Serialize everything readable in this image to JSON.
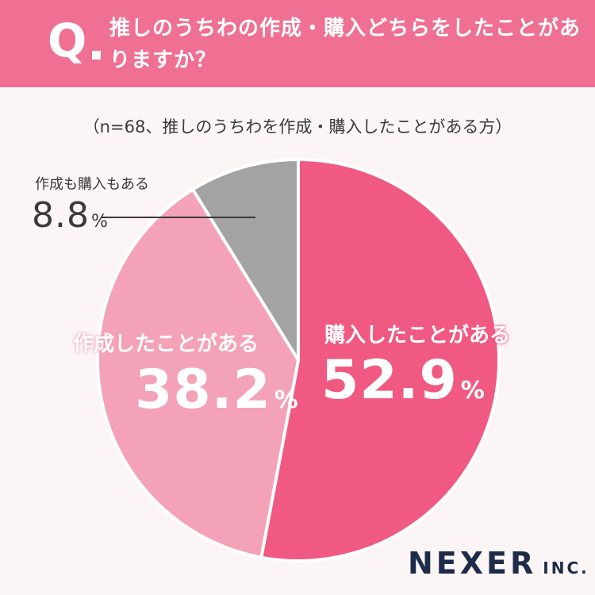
{
  "header": {
    "q_mark": "Q",
    "question": "推しのうちわの作成・購入どちらをしたことがありますか？"
  },
  "subtitle": "（n=68、推しのうちわを作成・購入したことがある方）",
  "chart_data": {
    "type": "pie",
    "start": "12 o'clock, clockwise",
    "slices": [
      {
        "label": "購入したことがある",
        "value": 52.9,
        "color": "#f05a82"
      },
      {
        "label": "作成したことがある",
        "value": 38.2,
        "color": "#f4a2b7"
      },
      {
        "label": "作成も購入もある",
        "value": 8.8,
        "color": "#a3a3a3"
      }
    ],
    "unit": "%"
  },
  "labels": {
    "purchase_name": "購入したことがある",
    "purchase_value": "52.9",
    "create_name": "作成したことがある",
    "create_value": "38.2",
    "both_name": "作成も購入もある",
    "both_value": "8.8",
    "percent": "%"
  },
  "logo": {
    "main": "NEXER",
    "suffix": "INC."
  }
}
